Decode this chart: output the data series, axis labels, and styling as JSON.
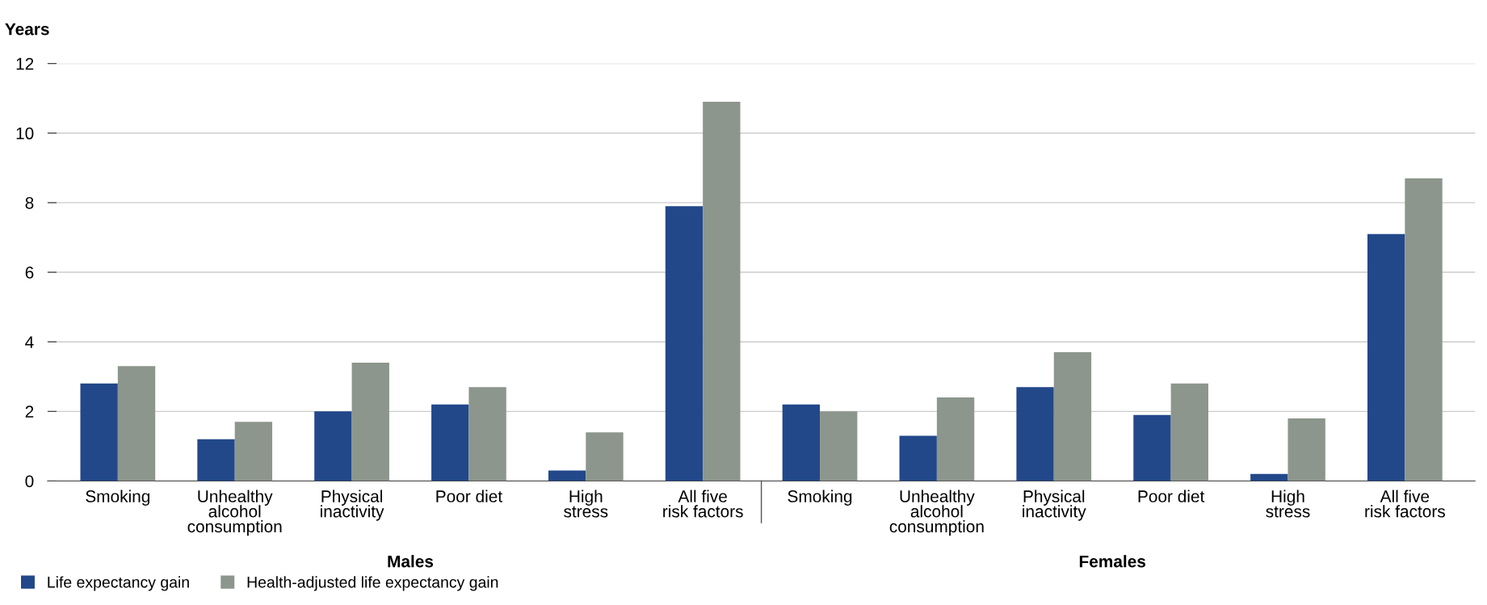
{
  "chart_data": {
    "type": "bar",
    "ylabel": "Years",
    "categories": [
      "Smoking",
      "Unhealthy\nalcohol\nconsumption",
      "Physical\ninactivity",
      "Poor diet",
      "High\nstress",
      "All five\nrisk factors",
      "Smoking",
      "Unhealthy\nalcohol\nconsumption",
      "Physical\ninactivity",
      "Poor diet",
      "High\nstress",
      "All five\nrisk factors"
    ],
    "series": [
      {
        "name": "Life expectancy gain",
        "color": "#22488a",
        "values": [
          2.8,
          1.2,
          2.0,
          2.2,
          0.3,
          7.9,
          2.2,
          1.3,
          2.7,
          1.9,
          0.2,
          7.1
        ]
      },
      {
        "name": "Health-adjusted life expectancy gain",
        "color": "#8c968c",
        "values": [
          3.3,
          1.7,
          3.4,
          2.7,
          1.4,
          10.9,
          2.0,
          2.4,
          3.7,
          2.8,
          1.8,
          8.7
        ]
      }
    ],
    "annotations": [
      "Males",
      "Females"
    ],
    "ylim": [
      0,
      12
    ],
    "yticks": [
      0,
      2,
      4,
      6,
      8,
      10,
      12
    ],
    "grid": "y",
    "legend": "bottom left"
  }
}
